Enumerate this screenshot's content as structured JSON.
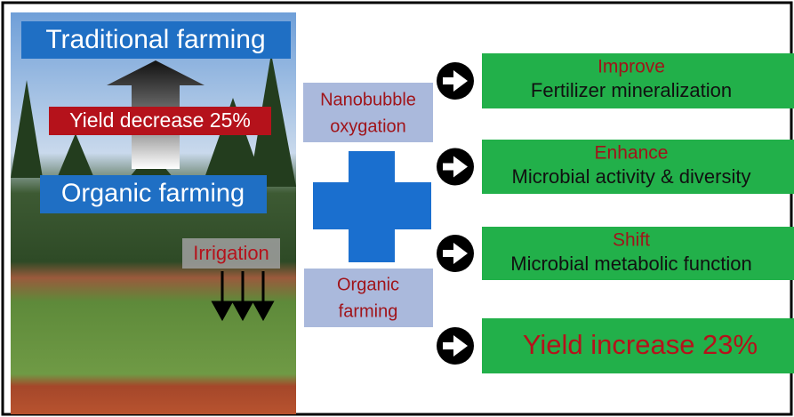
{
  "left_panel": {
    "top_label": "Traditional farming",
    "change_label": "Yield decrease 25%",
    "bottom_label": "Organic farming",
    "irrigation_label": "Irrigation"
  },
  "middle": {
    "top_box": [
      "Nanobubble",
      "oxygation"
    ],
    "bottom_box": [
      "Organic",
      "farming"
    ]
  },
  "outcomes": [
    {
      "verb": "Improve",
      "text": "Fertilizer mineralization"
    },
    {
      "verb": "Enhance",
      "text": "Microbial activity & diversity"
    },
    {
      "verb": "Shift",
      "text": "Microbial metabolic function"
    },
    {
      "text": "Yield increase 23%"
    }
  ]
}
